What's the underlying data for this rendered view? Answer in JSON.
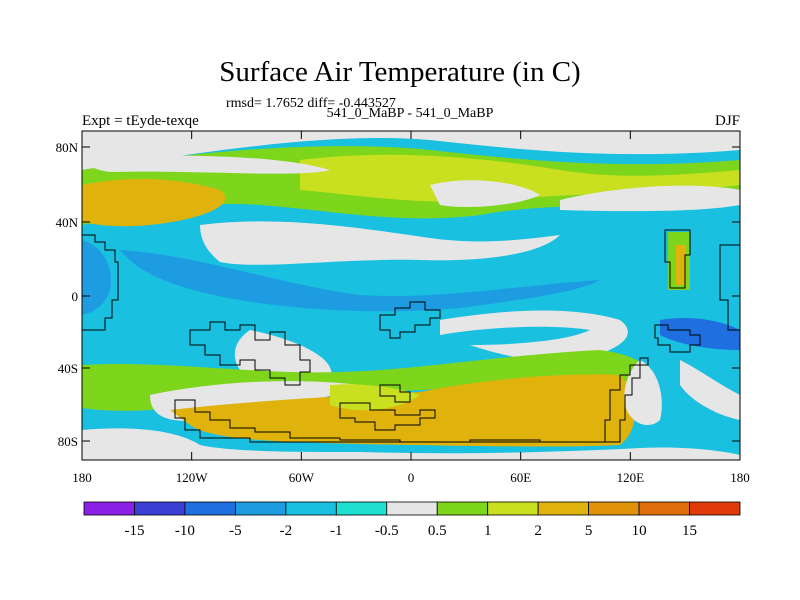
{
  "title": "Surface Air Temperature (in C)",
  "stats_line": "rmsd= 1.7652  diff= -0.443527",
  "subtitle": "541_0_MaBP - 541_0_MaBP",
  "left_label": "Expt = tEyde-texqe",
  "right_label": "DJF",
  "map": {
    "y_ticks": [
      "80N",
      "40N",
      "0",
      "40S",
      "80S"
    ],
    "x_ticks": [
      "180",
      "120W",
      "60W",
      "0",
      "60E",
      "120E",
      "180"
    ]
  },
  "colorbar": {
    "colors": [
      "#8a1fe6",
      "#3b3fd6",
      "#1f6fe0",
      "#1e9ce2",
      "#19c0e0",
      "#1fe0d0",
      "#e6e6e6",
      "#7ed61c",
      "#c8e01f",
      "#e0b20c",
      "#e09308",
      "#e06e0a",
      "#e03a0a"
    ],
    "labels": [
      "-15",
      "-10",
      "-5",
      "-2",
      "-1",
      "-0.5",
      "0.5",
      "1",
      "2",
      "5",
      "10",
      "15"
    ]
  },
  "palette": {
    "blue_deep": "#1f6fe0",
    "blue_mid": "#1e9ce2",
    "cyan": "#19c0e0",
    "teal": "#1fe0d0",
    "gray": "#e6e6e6",
    "green": "#7ed61c",
    "yellowgreen": "#c8e01f",
    "orange": "#e0b20c"
  }
}
